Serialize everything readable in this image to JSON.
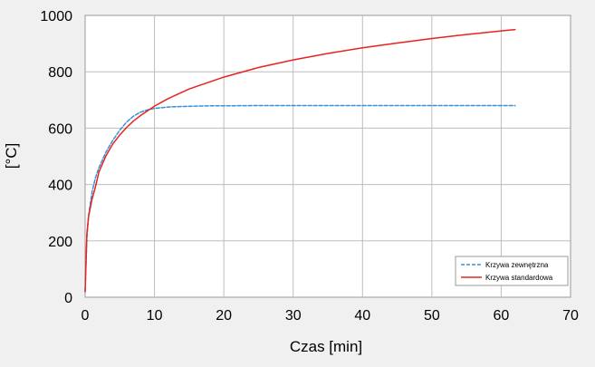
{
  "chart_data": {
    "type": "line",
    "xlabel": "Czas [min]",
    "ylabel": "[°C]",
    "xlim": [
      0,
      70
    ],
    "ylim": [
      0,
      1000
    ],
    "x_ticks": [
      0,
      10,
      20,
      30,
      40,
      50,
      60,
      70
    ],
    "y_ticks": [
      0,
      200,
      400,
      600,
      800,
      1000
    ],
    "grid": true,
    "legend_position": "bottom-right",
    "series": [
      {
        "name": "Krzywa zewnętrzna",
        "color": "#3a8fd6",
        "style": "dashed",
        "x": [
          0,
          0.25,
          0.5,
          1,
          1.5,
          2,
          3,
          4,
          5,
          6,
          7,
          8,
          9,
          10,
          12,
          14,
          16,
          18,
          20,
          25,
          30,
          40,
          50,
          62
        ],
        "y": [
          20,
          210,
          290,
          375,
          425,
          460,
          515,
          557,
          593,
          622,
          643,
          657,
          665,
          670,
          675,
          677,
          678,
          679,
          679,
          680,
          680,
          680,
          680,
          680
        ]
      },
      {
        "name": "Krzywa standardowa",
        "color": "#e8231f",
        "style": "solid",
        "x": [
          0,
          0.25,
          0.5,
          1,
          1.5,
          2,
          3,
          4,
          5,
          6,
          7,
          8,
          10,
          12,
          15,
          20,
          25,
          30,
          35,
          40,
          45,
          50,
          55,
          60,
          62
        ],
        "y": [
          20,
          223,
          286,
          349,
          393,
          445,
          502,
          544,
          576,
          603,
          626,
          645,
          678,
          705,
          739,
          781,
          815,
          842,
          865,
          885,
          902,
          918,
          932,
          945,
          950
        ]
      }
    ]
  }
}
